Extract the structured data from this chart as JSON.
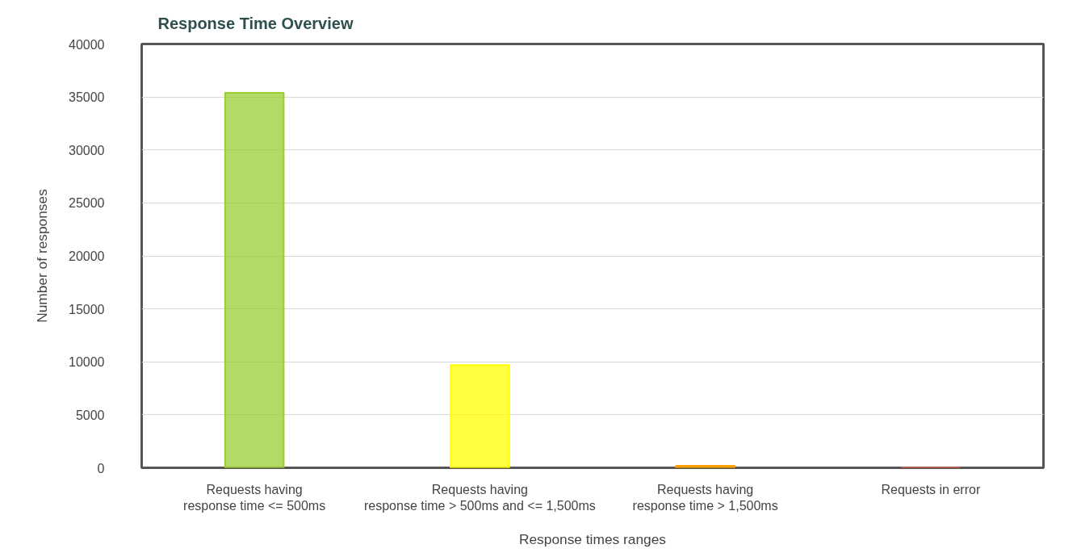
{
  "chart_data": {
    "type": "bar",
    "title": "Response Time Overview",
    "xlabel": "Response times ranges",
    "ylabel": "Number of responses",
    "categories": [
      "Requests having\nresponse time <= 500ms",
      "Requests having\nresponse time > 500ms and <= 1,500ms",
      "Requests having\nresponse time > 1,500ms",
      "Requests in error"
    ],
    "values": [
      35400,
      9700,
      200,
      0
    ],
    "colors": [
      "#9acd32",
      "#ffff00",
      "#ff9f00",
      "#ff6347"
    ],
    "ylim": [
      0,
      40000
    ],
    "yticks": [
      0,
      5000,
      10000,
      15000,
      20000,
      25000,
      30000,
      35000,
      40000
    ],
    "grid": "y"
  }
}
